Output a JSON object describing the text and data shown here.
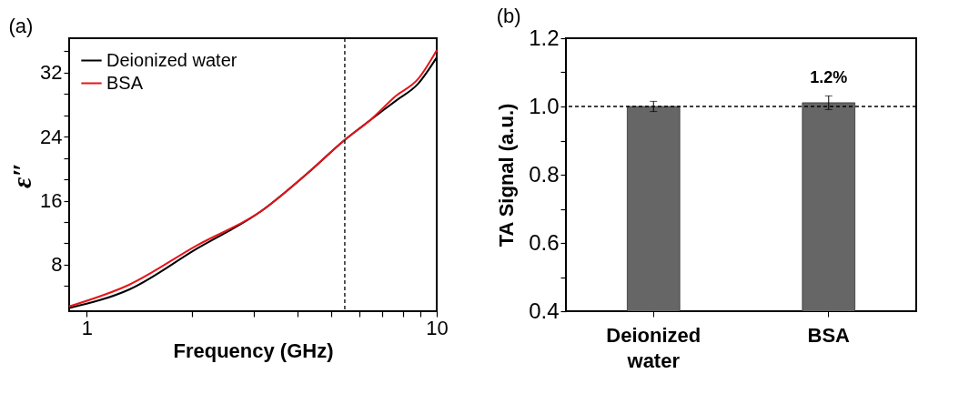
{
  "chart_data": [
    {
      "type": "line",
      "title": "(a)",
      "xlabel": "Frequency (GHz)",
      "ylabel": "ε″",
      "log": "x",
      "legend": "top left",
      "xlim": [
        0.89,
        10
      ],
      "xticks": [
        1,
        {
          "value": 2,
          "label": null
        },
        {
          "value": 3,
          "label": null
        },
        {
          "value": 4,
          "label": null
        },
        {
          "value": 5,
          "label": null
        },
        {
          "value": 6,
          "label": null
        },
        {
          "value": 7,
          "label": null
        },
        {
          "value": 8,
          "label": null
        },
        {
          "value": 9,
          "label": null
        },
        10
      ],
      "ylim": [
        2.2,
        36.3
      ],
      "yticks": [
        {
          "value": 5.33,
          "label": null
        },
        8,
        {
          "value": 10.67,
          "label": null
        },
        {
          "value": 13.33,
          "label": null
        },
        16,
        {
          "value": 18.67,
          "label": null
        },
        {
          "value": 21.33,
          "label": null
        },
        24,
        {
          "value": 26.67,
          "label": null
        },
        {
          "value": 29.33,
          "label": null
        },
        32,
        {
          "value": 34.67,
          "label": null
        }
      ],
      "ref_lines": [
        {
          "axis": "x",
          "value": 5.46,
          "line_style": "dashed",
          "color": "#000000"
        }
      ],
      "series": [
        {
          "name": "Deionized water",
          "color": "#000000",
          "x": [
            0.89,
            1.32,
            2.06,
            3.15,
            4.29,
            5.46,
            6.47,
            7.65,
            8.84,
            10
          ],
          "values": [
            2.6,
            4.9,
            10.0,
            14.7,
            19.5,
            23.6,
            26.1,
            28.5,
            30.6,
            33.9
          ]
        },
        {
          "name": "BSA",
          "color": "#e8141b",
          "x": [
            0.89,
            1.32,
            2.06,
            3.15,
            4.29,
            5.46,
            6.47,
            7.65,
            8.84,
            10
          ],
          "values": [
            2.8,
            5.5,
            10.4,
            14.7,
            19.5,
            23.6,
            26.1,
            29.1,
            31.2,
            34.8
          ]
        }
      ]
    },
    {
      "type": "bar",
      "title": "(b)",
      "ylabel": "TA Signal  (a.u.)",
      "categories": [
        "Deionized water",
        "BSA"
      ],
      "values": [
        1.0,
        1.011
      ],
      "errors": [
        0.015,
        0.02
      ],
      "color": "#666666",
      "ylim": [
        0.4,
        1.2
      ],
      "yticks": [
        0.4,
        {
          "value": 0.5,
          "label": null
        },
        0.6,
        {
          "value": 0.7,
          "label": null
        },
        0.8,
        {
          "value": 0.9,
          "label": null
        },
        {
          "value": 1.0,
          "label": "1.0"
        },
        {
          "value": 1.1,
          "label": null
        },
        1.2
      ],
      "ref_lines": [
        {
          "axis": "y",
          "value": 1.0,
          "line_style": "dashed",
          "color": "#000000"
        }
      ],
      "annotations": [
        {
          "text": "1.2%",
          "x": "BSA",
          "y": 1.011
        }
      ]
    }
  ]
}
